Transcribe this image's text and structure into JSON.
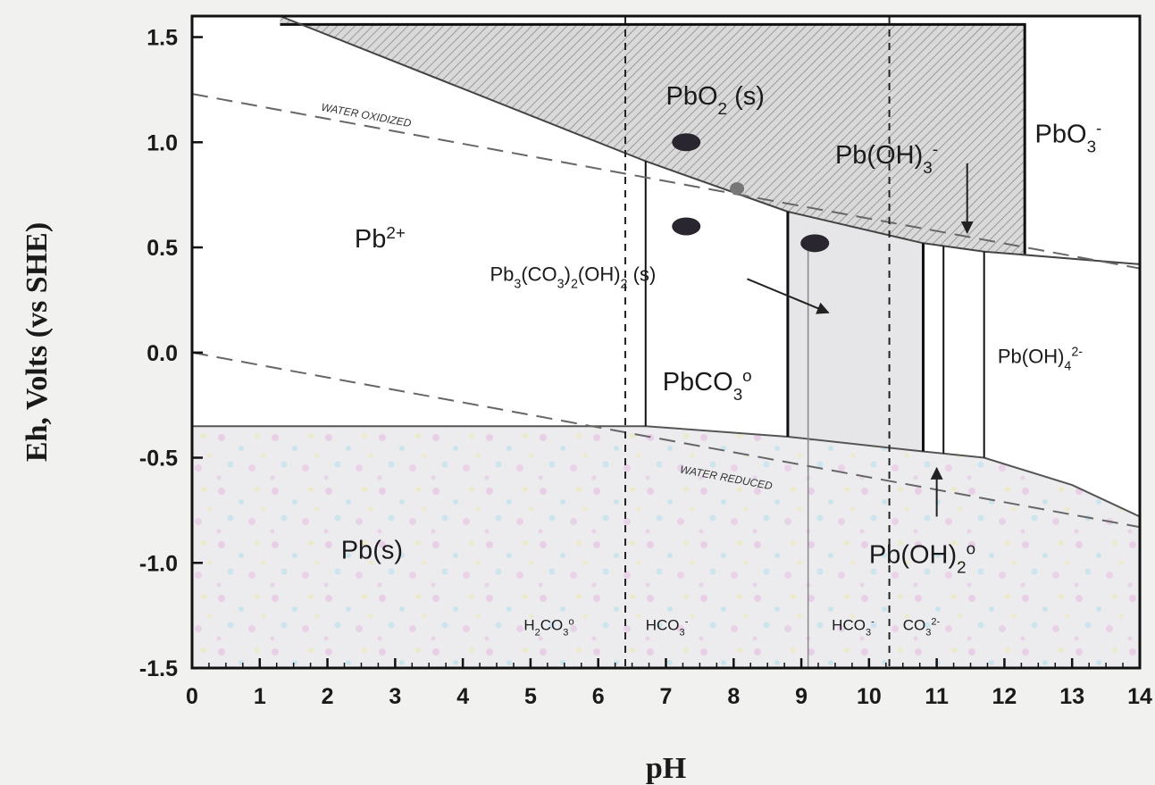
{
  "chart_data": {
    "type": "area",
    "xlabel": "pH",
    "ylabel": "Eh, Volts (vs SHE)",
    "xlim": [
      0,
      14
    ],
    "ylim": [
      -1.5,
      1.6
    ],
    "x_ticks": [
      "0",
      "1",
      "2",
      "3",
      "4",
      "5",
      "6",
      "7",
      "8",
      "9",
      "10",
      "11",
      "12",
      "13",
      "14"
    ],
    "y_ticks": [
      "1.5",
      "1.0",
      "0.5",
      "0.0",
      "-0.5",
      "-1.0",
      "-1.5"
    ],
    "y_tick_values": [
      1.5,
      1.0,
      0.5,
      0.0,
      -0.5,
      -1.0,
      -1.5
    ],
    "grid": false,
    "regions": {
      "pbo2": {
        "label": "PbO",
        "sub": "2",
        "suffix": "  (s)"
      },
      "pb2": {
        "label": "Pb",
        "sup": "2+"
      },
      "pbs": {
        "label": "Pb(s)"
      },
      "pbo3": {
        "label": "PbO",
        "sub": "3",
        "sup": "-"
      },
      "pboh3": {
        "label": "Pb(OH)",
        "sub": "3",
        "sup": "-"
      },
      "pbco3": {
        "label": "PbCO",
        "sub": "3",
        "sup": "o"
      },
      "hydrocerussite": {
        "label": "Pb",
        "sub1": "3",
        "mid1": "(CO",
        "sub2": "3",
        "mid2": ")",
        "sub3": "2",
        "tail": "(OH)",
        "sub4": "2",
        "suffix": "  (s)"
      },
      "pboh4": {
        "label": "Pb(OH)",
        "sub": "4",
        "sup": "2-"
      },
      "pboh2": {
        "label": "Pb(OH)",
        "sub": "2",
        "sup": "o"
      }
    },
    "species": {
      "h2co3": {
        "label": "H",
        "sub1": "2",
        "mid": "CO",
        "sub2": "3",
        "sup": "o"
      },
      "hco3_a": {
        "label": "HCO",
        "sub": "3",
        "sup": "-"
      },
      "hco3_b": {
        "label": "HCO",
        "sub": "3",
        "sup": "-"
      },
      "co3": {
        "label": "CO",
        "sub": "3",
        "sup": "2-"
      }
    },
    "water_lines": {
      "oxidized": {
        "label": "WATER OXIDIZED",
        "points": [
          [
            0,
            1.23
          ],
          [
            14,
            0.4
          ]
        ]
      },
      "reduced": {
        "label": "WATER REDUCED",
        "points": [
          [
            0,
            0.0
          ],
          [
            14,
            -0.83
          ]
        ]
      }
    },
    "carbonate_boundaries": [
      6.4,
      10.3
    ],
    "boundaries": {
      "pb2_pbs": [
        [
          0,
          -0.35
        ],
        [
          5,
          -0.35
        ],
        [
          6.7,
          -0.35
        ],
        [
          8.8,
          -0.4
        ],
        [
          10.8,
          -0.47
        ],
        [
          11.7,
          -0.5
        ],
        [
          13,
          -0.63
        ],
        [
          14,
          -0.78
        ]
      ],
      "pbo2_lower": [
        [
          1.3,
          1.6
        ],
        [
          6.7,
          0.91
        ],
        [
          8.8,
          0.67
        ],
        [
          10.8,
          0.52
        ],
        [
          11.7,
          0.48
        ],
        [
          14,
          0.42
        ]
      ],
      "pbo2_top": 1.56,
      "pbo2_right_pH": 12.3,
      "vertical_pH": [
        6.7,
        8.8,
        10.8,
        11.1,
        11.7
      ]
    },
    "markers": [
      [
        7.3,
        1.0
      ],
      [
        7.3,
        0.6
      ],
      [
        8.05,
        0.78
      ],
      [
        9.2,
        0.52
      ]
    ],
    "arrows": [
      {
        "from": [
          8.2,
          0.35
        ],
        "to": [
          9.4,
          0.19
        ]
      },
      {
        "from": [
          11.45,
          0.9
        ],
        "to": [
          11.45,
          0.57
        ]
      },
      {
        "from": [
          11.0,
          -0.78
        ],
        "to": [
          11.0,
          -0.55
        ]
      }
    ]
  }
}
